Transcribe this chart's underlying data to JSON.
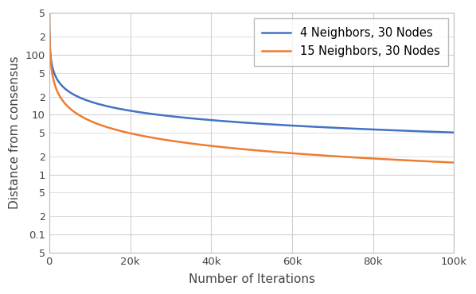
{
  "title": "",
  "xlabel": "Number of Iterations",
  "ylabel": "Distance from consensus",
  "xlim": [
    0,
    100000
  ],
  "ylim_log": [
    0.05,
    500
  ],
  "line1_label": "4 Neighbors, 30 Nodes",
  "line2_label": "15 Neighbors, 30 Nodes",
  "line1_color": "#4472c4",
  "line2_color": "#ed7d31",
  "line1_A": 2000,
  "line1_alpha": 0.52,
  "line2_A": 5000,
  "line2_alpha": 0.7,
  "n_points": 2000,
  "x_max": 100000,
  "background_color": "#ffffff",
  "grid_color": "#d0d0d0",
  "legend_fontsize": 10.5,
  "axis_label_fontsize": 11,
  "xtick_labels": [
    "0",
    "20k",
    "40k",
    "60k",
    "80k",
    "100k"
  ],
  "xtick_values": [
    0,
    20000,
    40000,
    60000,
    80000,
    100000
  ]
}
